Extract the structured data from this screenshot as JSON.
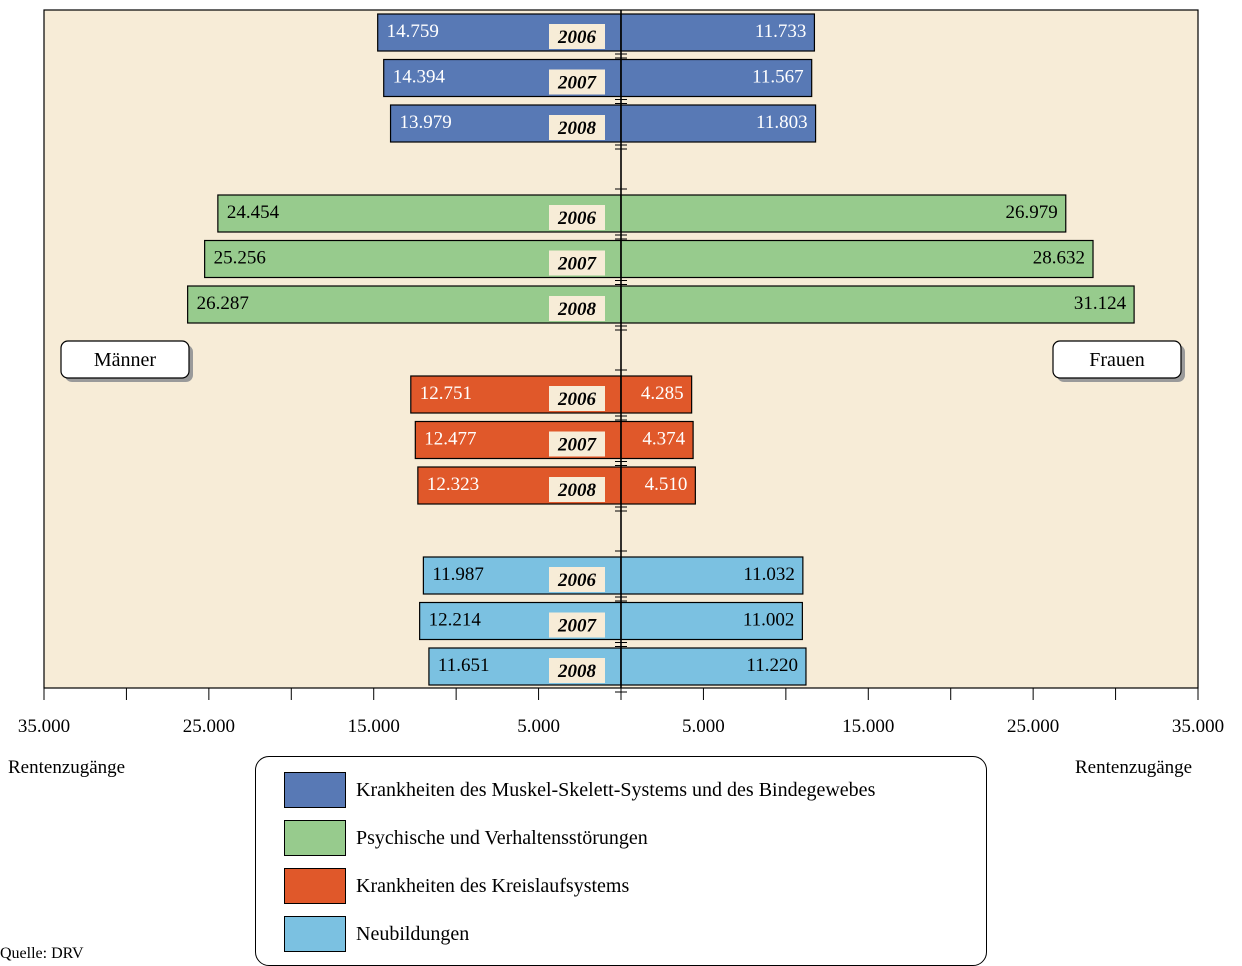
{
  "chart_data": {
    "type": "bar",
    "subtype": "butterfly",
    "left_label": "Männer",
    "right_label": "Frauen",
    "xlabel_left": "Rentenzugänge",
    "xlabel_right": "Rentenzugänge",
    "xlim": [
      -35000,
      35000
    ],
    "tick_labels": [
      "35.000",
      "25.000",
      "15.000",
      "5.000",
      "5.000",
      "15.000",
      "25.000",
      "35.000"
    ],
    "tick_values": [
      -35000,
      -25000,
      -15000,
      -5000,
      5000,
      15000,
      25000,
      35000
    ],
    "background_color": "#F7ECD7",
    "year_label_bg": "#F7ECD7",
    "groups": [
      {
        "name": "Krankheiten des Muskel-Skelett-Systems und des Bindegewebes",
        "color": "#5879B5",
        "label_color": "#FFFFFF",
        "rows": [
          {
            "year": "2006",
            "men": 14759,
            "men_label": "14.759",
            "women": 11733,
            "women_label": "11.733"
          },
          {
            "year": "2007",
            "men": 14394,
            "men_label": "14.394",
            "women": 11567,
            "women_label": "11.567"
          },
          {
            "year": "2008",
            "men": 13979,
            "men_label": "13.979",
            "women": 11803,
            "women_label": "11.803"
          }
        ]
      },
      {
        "name": "Psychische und Verhaltensstörungen",
        "color": "#97CB8D",
        "label_color": "#000000",
        "rows": [
          {
            "year": "2006",
            "men": 24454,
            "men_label": "24.454",
            "women": 26979,
            "women_label": "26.979"
          },
          {
            "year": "2007",
            "men": 25256,
            "men_label": "25.256",
            "women": 28632,
            "women_label": "28.632"
          },
          {
            "year": "2008",
            "men": 26287,
            "men_label": "26.287",
            "women": 31124,
            "women_label": "31.124"
          }
        ]
      },
      {
        "name": "Krankheiten des Kreislaufsystems",
        "color": "#E0582A",
        "label_color": "#FFFFFF",
        "rows": [
          {
            "year": "2006",
            "men": 12751,
            "men_label": "12.751",
            "women": 4285,
            "women_label": "4.285"
          },
          {
            "year": "2007",
            "men": 12477,
            "men_label": "12.477",
            "women": 4374,
            "women_label": "4.374"
          },
          {
            "year": "2008",
            "men": 12323,
            "men_label": "12.323",
            "women": 4510,
            "women_label": "4.510"
          }
        ]
      },
      {
        "name": "Neubildungen",
        "color": "#7BC1E1",
        "label_color": "#000000",
        "rows": [
          {
            "year": "2006",
            "men": 11987,
            "men_label": "11.987",
            "women": 11032,
            "women_label": "11.032"
          },
          {
            "year": "2007",
            "men": 12214,
            "men_label": "12.214",
            "women": 11002,
            "women_label": "11.002"
          },
          {
            "year": "2008",
            "men": 11651,
            "men_label": "11.651",
            "women": 11220,
            "women_label": "11.220"
          }
        ]
      }
    ]
  },
  "source": "Quelle: DRV"
}
